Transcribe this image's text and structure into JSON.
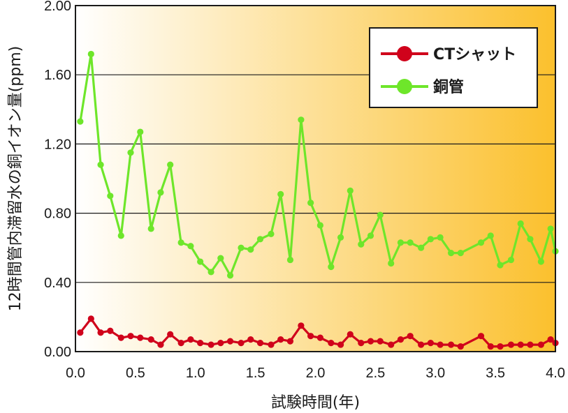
{
  "chart_data": {
    "type": "line",
    "title": "",
    "xlabel": "試験時間(年)",
    "ylabel": "12時間管内滞留水の銅イオン量(ppm)",
    "xlim": [
      0.0,
      4.0
    ],
    "ylim": [
      0.0,
      2.0
    ],
    "xticks": [
      "0.0",
      "0.5",
      "1.0",
      "1.5",
      "2.0",
      "2.5",
      "3.0",
      "3.5",
      "4.0"
    ],
    "yticks": [
      "0.00",
      "0.40",
      "0.80",
      "1.20",
      "1.60",
      "2.00"
    ],
    "grid": "horizontal",
    "legend_position": "top-right",
    "background_gradient": [
      "#ffffff",
      "#fbc02d"
    ],
    "series": [
      {
        "name": "CTシャット",
        "color": "#d0021b",
        "points": [
          [
            0.04,
            0.11
          ],
          [
            0.13,
            0.19
          ],
          [
            0.21,
            0.11
          ],
          [
            0.29,
            0.12
          ],
          [
            0.38,
            0.08
          ],
          [
            0.46,
            0.09
          ],
          [
            0.54,
            0.08
          ],
          [
            0.63,
            0.07
          ],
          [
            0.71,
            0.04
          ],
          [
            0.79,
            0.1
          ],
          [
            0.88,
            0.05
          ],
          [
            0.96,
            0.07
          ],
          [
            1.04,
            0.05
          ],
          [
            1.13,
            0.04
          ],
          [
            1.21,
            0.05
          ],
          [
            1.29,
            0.06
          ],
          [
            1.38,
            0.05
          ],
          [
            1.46,
            0.07
          ],
          [
            1.54,
            0.05
          ],
          [
            1.63,
            0.04
          ],
          [
            1.71,
            0.07
          ],
          [
            1.79,
            0.06
          ],
          [
            1.88,
            0.15
          ],
          [
            1.96,
            0.09
          ],
          [
            2.04,
            0.08
          ],
          [
            2.13,
            0.05
          ],
          [
            2.21,
            0.04
          ],
          [
            2.29,
            0.1
          ],
          [
            2.38,
            0.05
          ],
          [
            2.46,
            0.06
          ],
          [
            2.54,
            0.06
          ],
          [
            2.63,
            0.04
          ],
          [
            2.71,
            0.07
          ],
          [
            2.79,
            0.09
          ],
          [
            2.88,
            0.04
          ],
          [
            2.96,
            0.05
          ],
          [
            3.04,
            0.04
          ],
          [
            3.13,
            0.04
          ],
          [
            3.21,
            0.03
          ],
          [
            3.38,
            0.09
          ],
          [
            3.46,
            0.03
          ],
          [
            3.54,
            0.03
          ],
          [
            3.63,
            0.04
          ],
          [
            3.71,
            0.04
          ],
          [
            3.79,
            0.04
          ],
          [
            3.88,
            0.04
          ],
          [
            3.96,
            0.07
          ],
          [
            4.0,
            0.05
          ]
        ]
      },
      {
        "name": "銅管",
        "color": "#6ee62a",
        "points": [
          [
            0.04,
            1.33
          ],
          [
            0.13,
            1.72
          ],
          [
            0.21,
            1.08
          ],
          [
            0.29,
            0.9
          ],
          [
            0.38,
            0.67
          ],
          [
            0.46,
            1.15
          ],
          [
            0.54,
            1.27
          ],
          [
            0.63,
            0.71
          ],
          [
            0.71,
            0.92
          ],
          [
            0.79,
            1.08
          ],
          [
            0.88,
            0.63
          ],
          [
            0.96,
            0.61
          ],
          [
            1.04,
            0.52
          ],
          [
            1.13,
            0.46
          ],
          [
            1.21,
            0.54
          ],
          [
            1.29,
            0.44
          ],
          [
            1.38,
            0.6
          ],
          [
            1.46,
            0.59
          ],
          [
            1.54,
            0.65
          ],
          [
            1.63,
            0.68
          ],
          [
            1.71,
            0.91
          ],
          [
            1.79,
            0.53
          ],
          [
            1.88,
            1.34
          ],
          [
            1.96,
            0.86
          ],
          [
            2.04,
            0.73
          ],
          [
            2.13,
            0.49
          ],
          [
            2.21,
            0.66
          ],
          [
            2.29,
            0.93
          ],
          [
            2.38,
            0.62
          ],
          [
            2.46,
            0.67
          ],
          [
            2.54,
            0.79
          ],
          [
            2.63,
            0.51
          ],
          [
            2.71,
            0.63
          ],
          [
            2.79,
            0.63
          ],
          [
            2.88,
            0.6
          ],
          [
            2.96,
            0.65
          ],
          [
            3.04,
            0.66
          ],
          [
            3.13,
            0.57
          ],
          [
            3.21,
            0.57
          ],
          [
            3.38,
            0.63
          ],
          [
            3.46,
            0.67
          ],
          [
            3.54,
            0.5
          ],
          [
            3.63,
            0.53
          ],
          [
            3.71,
            0.74
          ],
          [
            3.79,
            0.65
          ],
          [
            3.88,
            0.52
          ],
          [
            3.96,
            0.71
          ],
          [
            4.0,
            0.58
          ]
        ]
      }
    ]
  }
}
